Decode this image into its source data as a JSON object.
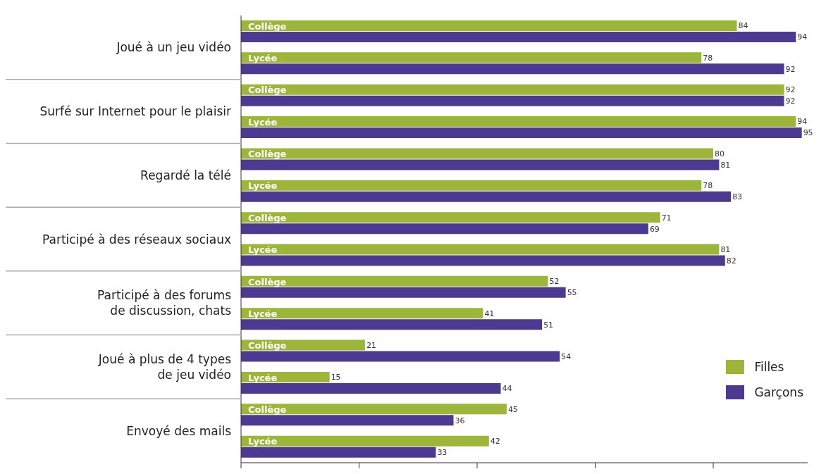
{
  "chart_data": {
    "type": "bar",
    "orientation": "horizontal",
    "categories": [
      "Collège",
      "Lycée",
      "Collège",
      "Lycée",
      "Collège",
      "Lycée",
      "Collège",
      "Lycée",
      "Collège",
      "Lycée",
      "Collège",
      "Lycée",
      "Collège",
      "Lycée"
    ],
    "annotations": [
      "Joué à un jeu vidéo",
      "Surfé sur Internet pour le plaisir",
      "Regardé la télé",
      "Participé à des réseaux sociaux",
      "Participé à des forums\nde discussion, chats",
      "Joué à plus de 4 types\nde jeu vidéo",
      "Envoyé des mails"
    ],
    "series": [
      {
        "name": "Filles",
        "color": "#9cb53a",
        "values": [
          84,
          78,
          92,
          94,
          80,
          78,
          71,
          81,
          52,
          41,
          21,
          15,
          45,
          42
        ]
      },
      {
        "name": "Garçons",
        "color": "#4b3a8f",
        "values": [
          94,
          92,
          92,
          95,
          81,
          83,
          69,
          82,
          55,
          51,
          54,
          44,
          36,
          33
        ]
      }
    ],
    "xlim": [
      0,
      96
    ],
    "xticks": [
      {
        "value": 0,
        "label": null
      },
      {
        "value": 20,
        "label": null
      },
      {
        "value": 40,
        "label": null
      },
      {
        "value": 60,
        "label": null
      },
      {
        "value": 80,
        "label": null
      }
    ],
    "data_labels": true,
    "grid": false,
    "legend": "bottom right"
  }
}
